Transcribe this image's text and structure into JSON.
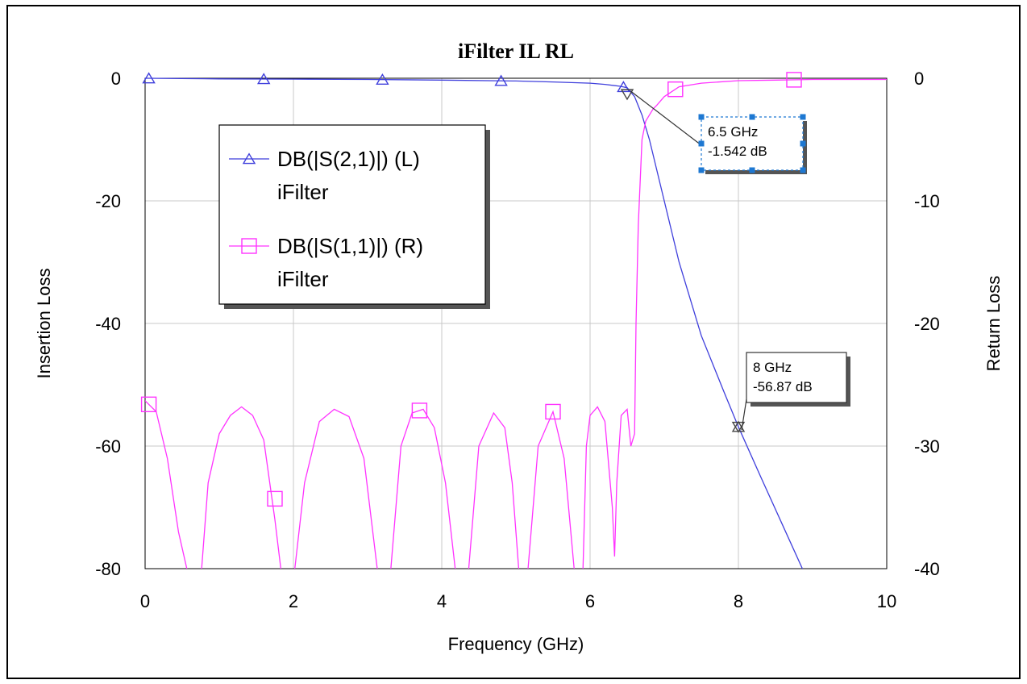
{
  "chart_data": {
    "type": "line",
    "title": "iFilter IL RL",
    "xlabel": "Frequency (GHz)",
    "ylabel_left": "Insertion Loss",
    "ylabel_right": "Return Loss",
    "xlim": [
      0,
      10
    ],
    "ylim_left": [
      -80,
      0
    ],
    "ylim_right": [
      -40,
      0
    ],
    "x_ticks": [
      "0",
      "2",
      "4",
      "6",
      "8",
      "10"
    ],
    "y_ticks_left": [
      "0",
      "-20",
      "-40",
      "-60",
      "-80"
    ],
    "y_ticks_right": [
      "0",
      "-10",
      "-20",
      "-30",
      "-40"
    ],
    "grid": true,
    "legend_position": "upper-left",
    "series": [
      {
        "name": "DB(|S(2,1)|) (L)",
        "name_line2": "iFilter",
        "axis": "left",
        "color": "#3f3fdc",
        "marker": "triangle",
        "x": [
          0,
          1,
          2,
          3,
          4,
          5,
          5.5,
          6,
          6.2,
          6.4,
          6.5,
          6.6,
          6.7,
          6.8,
          7,
          7.2,
          7.5,
          7.8,
          8,
          8.3,
          8.6,
          8.9
        ],
        "y": [
          0,
          -0.1,
          -0.15,
          -0.2,
          -0.3,
          -0.45,
          -0.6,
          -0.8,
          -1.0,
          -1.3,
          -1.542,
          -3,
          -6,
          -10,
          -20,
          -30,
          -42,
          -51,
          -56.87,
          -65,
          -73,
          -81
        ]
      },
      {
        "name": "DB(|S(1,1)|) (R)",
        "name_line2": "iFilter",
        "axis": "right",
        "color": "#ff33ff",
        "marker": "square",
        "x": [
          0,
          0.15,
          0.3,
          0.45,
          0.6,
          0.75,
          0.85,
          1.0,
          1.15,
          1.3,
          1.45,
          1.6,
          1.75,
          1.85,
          2.0,
          2.15,
          2.35,
          2.55,
          2.75,
          2.95,
          3.15,
          3.3,
          3.45,
          3.6,
          3.75,
          3.9,
          4.05,
          4.2,
          4.35,
          4.5,
          4.7,
          4.85,
          4.95,
          5.05,
          5.15,
          5.3,
          5.5,
          5.65,
          5.8,
          5.9,
          5.95,
          6.0,
          6.1,
          6.2,
          6.3,
          6.33,
          6.36,
          6.42,
          6.5,
          6.55,
          6.6,
          6.62,
          6.65,
          6.7,
          6.75,
          6.8,
          6.85,
          6.9,
          7.0,
          7.2,
          7.5,
          8.0,
          8.5,
          9.0,
          9.5,
          10.0
        ],
        "y": [
          -26.3,
          -27.2,
          -31,
          -37,
          -41,
          -41,
          -33,
          -29,
          -27.5,
          -26.8,
          -27.5,
          -29.5,
          -36,
          -41,
          -41,
          -33,
          -28,
          -27,
          -27.6,
          -31,
          -41,
          -41,
          -30,
          -27.3,
          -27,
          -28.5,
          -33,
          -41,
          -41,
          -30,
          -27.3,
          -28.5,
          -33,
          -41,
          -41,
          -30,
          -27.2,
          -31,
          -41,
          -41,
          -30,
          -27.5,
          -26.8,
          -28,
          -35,
          -39,
          -33,
          -27.5,
          -27,
          -30,
          -29,
          -20,
          -12,
          -5,
          -3.5,
          -3,
          -2.5,
          -2.2,
          -1.5,
          -0.7,
          -0.4,
          -0.2,
          -0.15,
          -0.1,
          -0.1,
          -0.1
        ]
      }
    ],
    "markers": [
      {
        "x": 6.5,
        "y": -1.542,
        "label_line1": "6.5 GHz",
        "label_line2": "-1.542 dB"
      },
      {
        "x": 8,
        "y": -56.87,
        "label_line1": "8 GHz",
        "label_line2": "-56.87 dB"
      }
    ]
  }
}
